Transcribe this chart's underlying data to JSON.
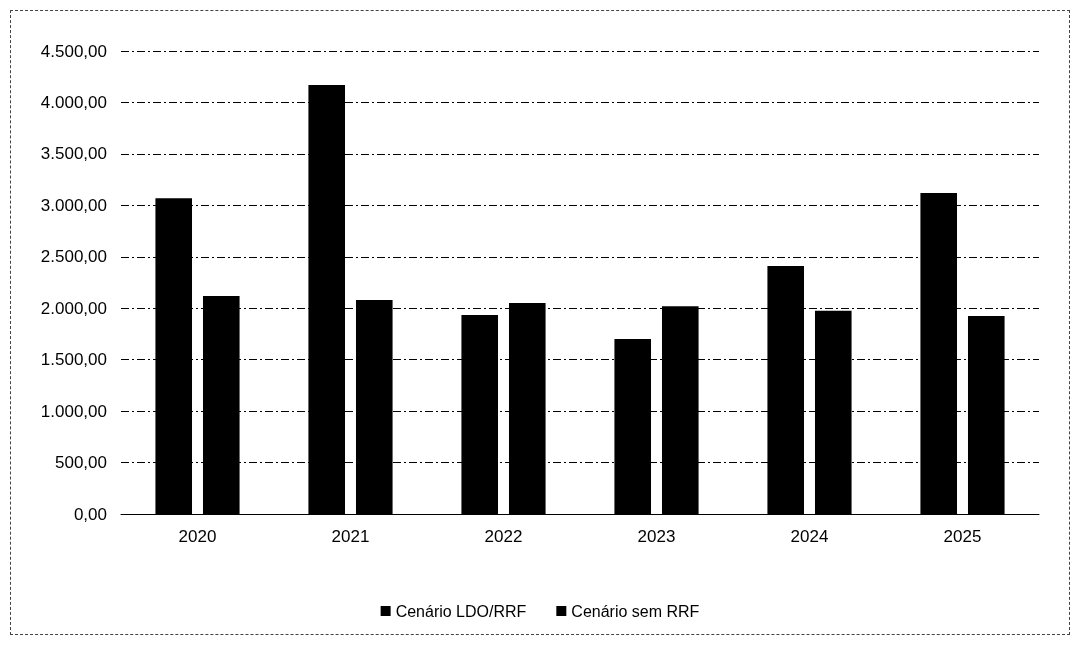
{
  "chart_data": {
    "type": "bar",
    "categories": [
      "2020",
      "2021",
      "2022",
      "2023",
      "2024",
      "2025"
    ],
    "series": [
      {
        "name": "Cenário LDO/RRF",
        "color": "#000000",
        "values": [
          3070,
          4170,
          1935,
          1700,
          2410,
          3120
        ]
      },
      {
        "name": "Cenário sem RRF",
        "color": "#000000",
        "values": [
          2120,
          2080,
          2050,
          2020,
          1975,
          1925
        ]
      }
    ],
    "ylim": [
      0,
      4500
    ],
    "yticks": [
      {
        "value": 0,
        "label": "0,00"
      },
      {
        "value": 500,
        "label": "500,00"
      },
      {
        "value": 1000,
        "label": "1.000,00"
      },
      {
        "value": 1500,
        "label": "1.500,00"
      },
      {
        "value": 2000,
        "label": "2.000,00"
      },
      {
        "value": 2500,
        "label": "2.500,00"
      },
      {
        "value": 3000,
        "label": "3.000,00"
      },
      {
        "value": 3500,
        "label": "3.500,00"
      },
      {
        "value": 4000,
        "label": "4.000,00"
      },
      {
        "value": 4500,
        "label": "4.500,00"
      }
    ],
    "grid": "y",
    "legend": "bottom"
  }
}
